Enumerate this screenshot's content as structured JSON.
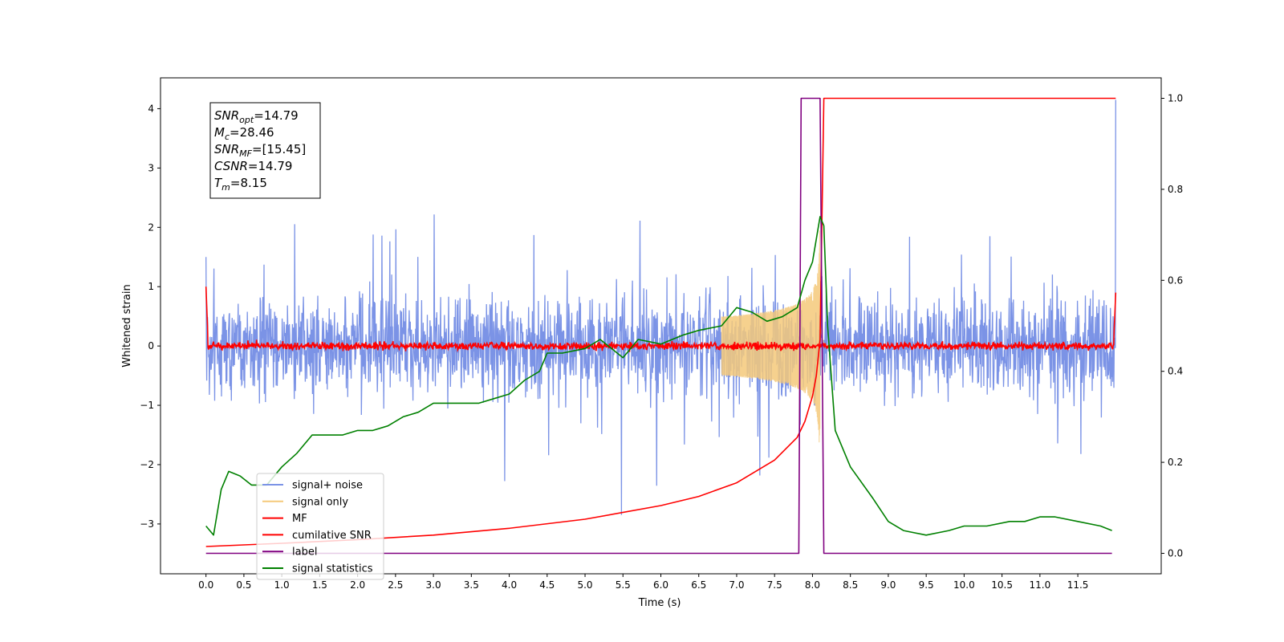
{
  "chart_data": {
    "type": "line",
    "xlabel": "Time (s)",
    "ylabel": "Whitened strain",
    "xlim": [
      -0.6,
      12.6
    ],
    "ylim": [
      -3.84,
      4.52
    ],
    "y2lim": [
      -0.045,
      1.045
    ],
    "xticks": [
      "0.0",
      "0.5",
      "1.0",
      "1.5",
      "2.0",
      "2.5",
      "3.0",
      "3.5",
      "4.0",
      "4.5",
      "5.0",
      "5.5",
      "6.0",
      "6.5",
      "7.0",
      "7.5",
      "8.0",
      "8.5",
      "9.0",
      "9.5",
      "10.0",
      "10.5",
      "11.0",
      "11.5"
    ],
    "yticks": [
      "4",
      "3",
      "2",
      "1",
      "0",
      "−1",
      "−2",
      "−3"
    ],
    "y2ticks": [
      "1.0",
      "0.8",
      "0.6",
      "0.4",
      "0.2",
      "0.0"
    ],
    "grid": false,
    "legend_position": "lower-left",
    "annotation": {
      "lines": [
        {
          "sym": "SNR",
          "sub": "opt",
          "value": "=14.79"
        },
        {
          "sym": "M",
          "sub": "c",
          "value": "=28.46"
        },
        {
          "sym": "SNR",
          "sub": "MF",
          "value": "=[15.45]"
        },
        {
          "sym": "CSNR",
          "sub": "",
          "value": "=14.79"
        },
        {
          "sym": "T",
          "sub": "m",
          "value": "=8.15"
        }
      ]
    },
    "series": [
      {
        "name": "signal+ noise",
        "color": "#7b93e6",
        "axis": "left",
        "description_noise_band": [
          -1.4,
          1.4
        ],
        "x_range": [
          0.0,
          12.0
        ]
      },
      {
        "name": "signal only",
        "color": "#f5c97a",
        "axis": "left",
        "chirp_peak_time": 8.1,
        "chirp_peak_amplitude": 2.0
      },
      {
        "name": "MF",
        "color": "#ff0000",
        "axis": "left",
        "noise_band": [
          -0.12,
          0.12
        ],
        "edge_values": [
          1.0,
          0.9
        ]
      },
      {
        "name": "cumilative SNR",
        "color": "#ff0000",
        "axis": "right",
        "x": [
          0.0,
          1.0,
          2.0,
          3.0,
          4.0,
          5.0,
          6.0,
          6.5,
          7.0,
          7.5,
          7.8,
          7.9,
          8.0,
          8.05,
          8.1,
          8.15,
          12.0
        ],
        "y": [
          0.015,
          0.022,
          0.03,
          0.04,
          0.055,
          0.075,
          0.105,
          0.125,
          0.155,
          0.205,
          0.255,
          0.29,
          0.345,
          0.39,
          0.47,
          1.0,
          1.0
        ]
      },
      {
        "name": "label",
        "color": "#800080",
        "axis": "right",
        "x": [
          0.0,
          7.82,
          7.85,
          8.1,
          8.15,
          11.95
        ],
        "y": [
          0.0,
          0.0,
          1.0,
          1.0,
          0.0,
          0.0
        ]
      },
      {
        "name": "signal statistics",
        "color": "#008000",
        "axis": "right",
        "x": [
          0.0,
          0.1,
          0.2,
          0.3,
          0.45,
          0.6,
          0.8,
          1.0,
          1.2,
          1.4,
          1.6,
          1.8,
          2.0,
          2.2,
          2.4,
          2.6,
          2.8,
          3.0,
          3.2,
          3.4,
          3.6,
          3.8,
          4.0,
          4.2,
          4.4,
          4.5,
          4.7,
          5.0,
          5.2,
          5.5,
          5.7,
          6.0,
          6.3,
          6.5,
          6.8,
          7.0,
          7.2,
          7.4,
          7.6,
          7.8,
          7.9,
          8.0,
          8.1,
          8.15,
          8.2,
          8.3,
          8.5,
          8.8,
          9.0,
          9.2,
          9.5,
          9.8,
          10.0,
          10.3,
          10.6,
          10.8,
          11.0,
          11.2,
          11.5,
          11.8,
          11.95
        ],
        "y": [
          0.06,
          0.04,
          0.14,
          0.18,
          0.17,
          0.15,
          0.15,
          0.19,
          0.22,
          0.26,
          0.26,
          0.26,
          0.27,
          0.27,
          0.28,
          0.3,
          0.31,
          0.33,
          0.33,
          0.33,
          0.33,
          0.34,
          0.35,
          0.38,
          0.4,
          0.44,
          0.44,
          0.45,
          0.47,
          0.43,
          0.47,
          0.46,
          0.48,
          0.49,
          0.5,
          0.54,
          0.53,
          0.51,
          0.52,
          0.54,
          0.6,
          0.64,
          0.74,
          0.72,
          0.5,
          0.27,
          0.19,
          0.12,
          0.07,
          0.05,
          0.04,
          0.05,
          0.06,
          0.06,
          0.07,
          0.07,
          0.08,
          0.08,
          0.07,
          0.06,
          0.05
        ]
      }
    ]
  }
}
